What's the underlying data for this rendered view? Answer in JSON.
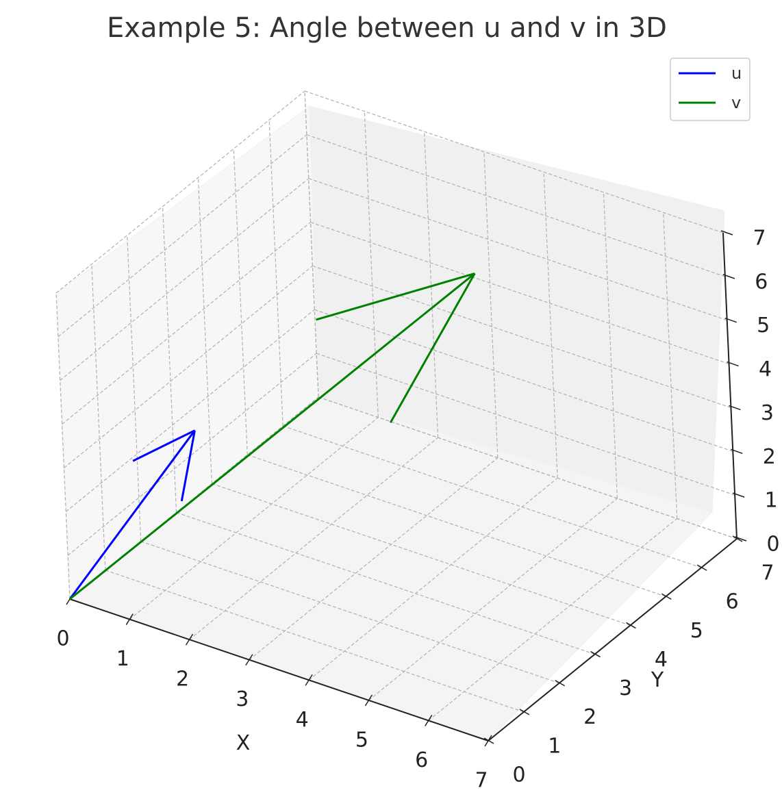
{
  "chart_data": {
    "type": "line",
    "projection": "3d",
    "title": "Example 5: Angle between u and v in 3D",
    "xlabel": "X",
    "ylabel": "Y",
    "zlabel": "",
    "xlim": [
      0,
      7
    ],
    "ylim": [
      0,
      7
    ],
    "zlim": [
      0,
      7
    ],
    "xticks": [
      "0",
      "1",
      "2",
      "3",
      "4",
      "5",
      "6",
      "7"
    ],
    "yticks": [
      "0",
      "1",
      "2",
      "3",
      "4",
      "5",
      "6",
      "7"
    ],
    "zticks": [
      "0",
      "1",
      "2",
      "3",
      "4",
      "5",
      "6",
      "7"
    ],
    "grid": true,
    "legend_position": "top-right",
    "series": [
      {
        "name": "u",
        "color": "#0000ff",
        "start": [
          0,
          0,
          0
        ],
        "vector": [
          1,
          2,
          3
        ]
      },
      {
        "name": "v",
        "color": "#008000",
        "start": [
          0,
          0,
          0
        ],
        "vector": [
          4,
          5,
          6
        ]
      }
    ]
  }
}
